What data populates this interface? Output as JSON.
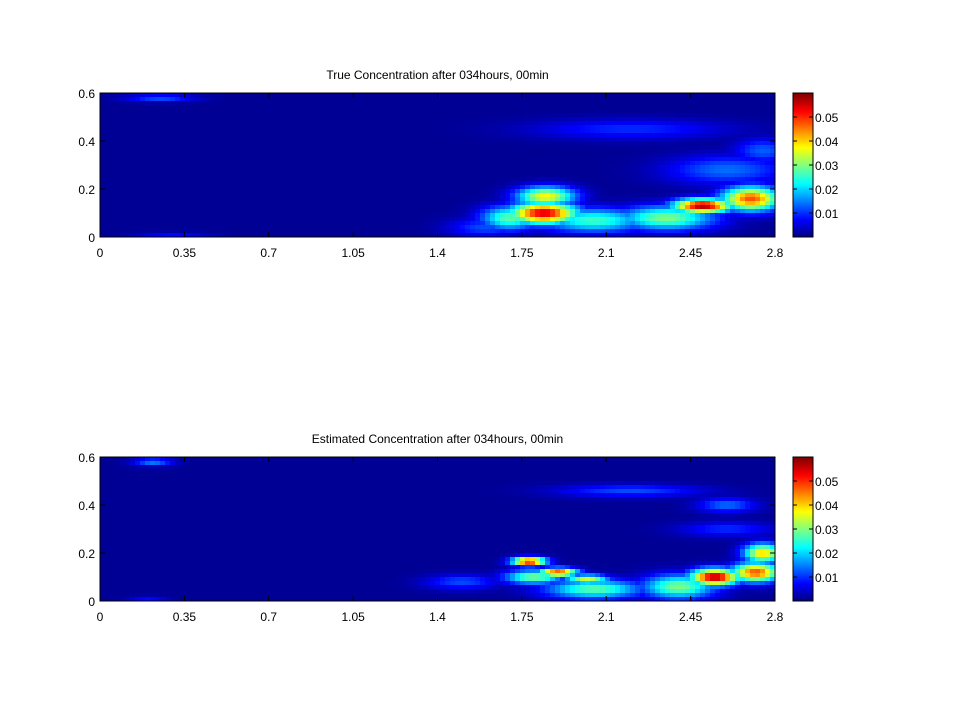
{
  "chart_data": [
    {
      "type": "heatmap",
      "title": "True Concentration after 034hours, 00min",
      "xlabel": "",
      "ylabel": "",
      "xlim": [
        0,
        2.8
      ],
      "ylim": [
        0,
        0.6
      ],
      "x_ticks": [
        "0",
        "0.35",
        "0.7",
        "1.05",
        "1.4",
        "1.75",
        "2.1",
        "2.45",
        "2.8"
      ],
      "y_ticks": [
        "0",
        "0.2",
        "0.4",
        "0.6"
      ],
      "colorbar": {
        "range": [
          0,
          0.06
        ],
        "ticks": [
          "0.01",
          "0.02",
          "0.03",
          "0.04",
          "0.05"
        ],
        "colormap": "jet"
      },
      "hotspots": [
        {
          "x": 1.84,
          "y": 0.1,
          "value": 0.055,
          "sx": 0.14,
          "sy": 0.045
        },
        {
          "x": 1.85,
          "y": 0.17,
          "value": 0.038,
          "sx": 0.12,
          "sy": 0.04
        },
        {
          "x": 1.7,
          "y": 0.08,
          "value": 0.028,
          "sx": 0.12,
          "sy": 0.05
        },
        {
          "x": 2.05,
          "y": 0.07,
          "value": 0.026,
          "sx": 0.22,
          "sy": 0.05
        },
        {
          "x": 2.5,
          "y": 0.13,
          "value": 0.058,
          "sx": 0.12,
          "sy": 0.03
        },
        {
          "x": 2.7,
          "y": 0.16,
          "value": 0.048,
          "sx": 0.12,
          "sy": 0.05
        },
        {
          "x": 2.35,
          "y": 0.08,
          "value": 0.03,
          "sx": 0.2,
          "sy": 0.05
        },
        {
          "x": 2.6,
          "y": 0.28,
          "value": 0.014,
          "sx": 0.25,
          "sy": 0.06
        },
        {
          "x": 2.2,
          "y": 0.45,
          "value": 0.01,
          "sx": 0.4,
          "sy": 0.04
        },
        {
          "x": 2.75,
          "y": 0.36,
          "value": 0.013,
          "sx": 0.12,
          "sy": 0.05
        },
        {
          "x": 0.25,
          "y": 0.58,
          "value": 0.013,
          "sx": 0.14,
          "sy": 0.014
        },
        {
          "x": 0.3,
          "y": 0.01,
          "value": 0.008,
          "sx": 0.15,
          "sy": 0.01
        },
        {
          "x": 1.6,
          "y": 0.04,
          "value": 0.012,
          "sx": 0.15,
          "sy": 0.04
        }
      ]
    },
    {
      "type": "heatmap",
      "title": "Estimated Concentration after 034hours, 00min",
      "xlabel": "",
      "ylabel": "",
      "xlim": [
        0,
        2.8
      ],
      "ylim": [
        0,
        0.6
      ],
      "x_ticks": [
        "0",
        "0.35",
        "0.7",
        "1.05",
        "1.4",
        "1.75",
        "2.1",
        "2.45",
        "2.8"
      ],
      "y_ticks": [
        "0",
        "0.2",
        "0.4",
        "0.6"
      ],
      "colorbar": {
        "range": [
          0,
          0.06
        ],
        "ticks": [
          "0.01",
          "0.02",
          "0.03",
          "0.04",
          "0.05"
        ],
        "colormap": "jet"
      },
      "hotspots": [
        {
          "x": 1.78,
          "y": 0.165,
          "value": 0.055,
          "sx": 0.07,
          "sy": 0.018
        },
        {
          "x": 1.9,
          "y": 0.12,
          "value": 0.05,
          "sx": 0.08,
          "sy": 0.018
        },
        {
          "x": 2.02,
          "y": 0.09,
          "value": 0.035,
          "sx": 0.09,
          "sy": 0.02
        },
        {
          "x": 1.8,
          "y": 0.1,
          "value": 0.03,
          "sx": 0.12,
          "sy": 0.03
        },
        {
          "x": 2.05,
          "y": 0.05,
          "value": 0.028,
          "sx": 0.2,
          "sy": 0.04
        },
        {
          "x": 2.55,
          "y": 0.1,
          "value": 0.058,
          "sx": 0.1,
          "sy": 0.035
        },
        {
          "x": 2.72,
          "y": 0.12,
          "value": 0.048,
          "sx": 0.1,
          "sy": 0.04
        },
        {
          "x": 2.75,
          "y": 0.2,
          "value": 0.04,
          "sx": 0.08,
          "sy": 0.04
        },
        {
          "x": 2.4,
          "y": 0.06,
          "value": 0.03,
          "sx": 0.15,
          "sy": 0.05
        },
        {
          "x": 2.2,
          "y": 0.46,
          "value": 0.012,
          "sx": 0.3,
          "sy": 0.025
        },
        {
          "x": 2.6,
          "y": 0.4,
          "value": 0.014,
          "sx": 0.12,
          "sy": 0.03
        },
        {
          "x": 2.6,
          "y": 0.3,
          "value": 0.01,
          "sx": 0.2,
          "sy": 0.03
        },
        {
          "x": 0.22,
          "y": 0.58,
          "value": 0.016,
          "sx": 0.08,
          "sy": 0.015
        },
        {
          "x": 0.2,
          "y": 0.01,
          "value": 0.008,
          "sx": 0.08,
          "sy": 0.01
        },
        {
          "x": 1.5,
          "y": 0.08,
          "value": 0.012,
          "sx": 0.15,
          "sy": 0.03
        }
      ]
    }
  ]
}
